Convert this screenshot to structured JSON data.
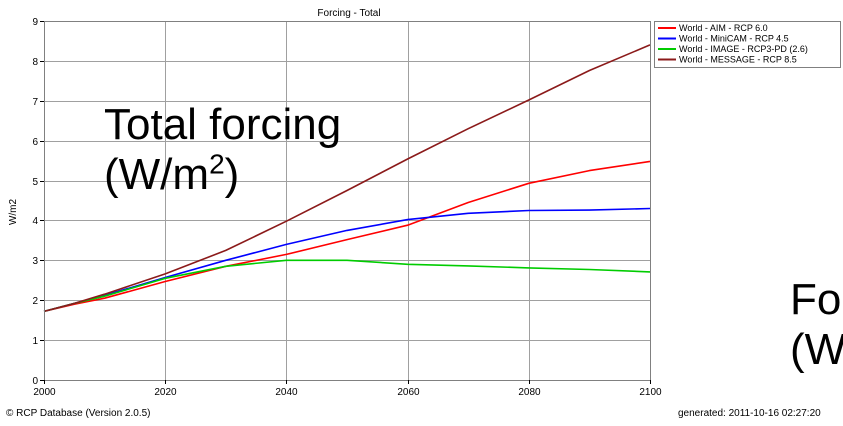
{
  "overlay": {
    "main_title_line1": "Total forcing",
    "main_title_line2_pre": "(W/m",
    "main_title_line2_sup": "2",
    "main_title_line2_post": ")",
    "right_title_line1": "Fo",
    "right_title_line2": "(W"
  },
  "footer": {
    "left": "© RCP Database (Version 2.0.5)",
    "right": "generated: 2011-10-16 02:27:20"
  },
  "colors": {
    "aim": "#ff0000",
    "minicam": "#0000ff",
    "image": "#00cc00",
    "message": "#8b1a1a",
    "grid": "#a0a0a0"
  },
  "chart_data": {
    "type": "line",
    "title": "Forcing - Total",
    "xlabel": "",
    "ylabel": "W/m2",
    "xlim": [
      2000,
      2100
    ],
    "ylim": [
      0,
      9
    ],
    "xticks": [
      2000,
      2020,
      2040,
      2060,
      2080,
      2100
    ],
    "yticks": [
      0,
      1,
      2,
      3,
      4,
      5,
      6,
      7,
      8,
      9
    ],
    "grid": true,
    "legend_position": "top-right outside",
    "x": [
      2000,
      2005,
      2010,
      2020,
      2030,
      2040,
      2050,
      2060,
      2070,
      2080,
      2090,
      2100
    ],
    "series": [
      {
        "name": "World - AIM - RCP 6.0",
        "color_key": "aim",
        "values": [
          1.72,
          1.9,
          2.05,
          2.47,
          2.85,
          3.15,
          3.52,
          3.88,
          4.45,
          4.93,
          5.25,
          5.48
        ]
      },
      {
        "name": "World - MiniCAM - RCP 4.5",
        "color_key": "minicam",
        "values": [
          1.72,
          1.92,
          2.12,
          2.57,
          3.0,
          3.4,
          3.75,
          4.02,
          4.18,
          4.25,
          4.26,
          4.3
        ]
      },
      {
        "name": "World - IMAGE - RCP3-PD (2.6)",
        "color_key": "image",
        "values": [
          1.72,
          1.92,
          2.1,
          2.55,
          2.85,
          3.0,
          3.0,
          2.9,
          2.86,
          2.81,
          2.77,
          2.71
        ]
      },
      {
        "name": "World - MESSAGE - RCP 8.5",
        "color_key": "message",
        "values": [
          1.72,
          1.92,
          2.15,
          2.66,
          3.25,
          3.98,
          4.75,
          5.54,
          6.3,
          7.02,
          7.76,
          8.4
        ]
      }
    ]
  }
}
